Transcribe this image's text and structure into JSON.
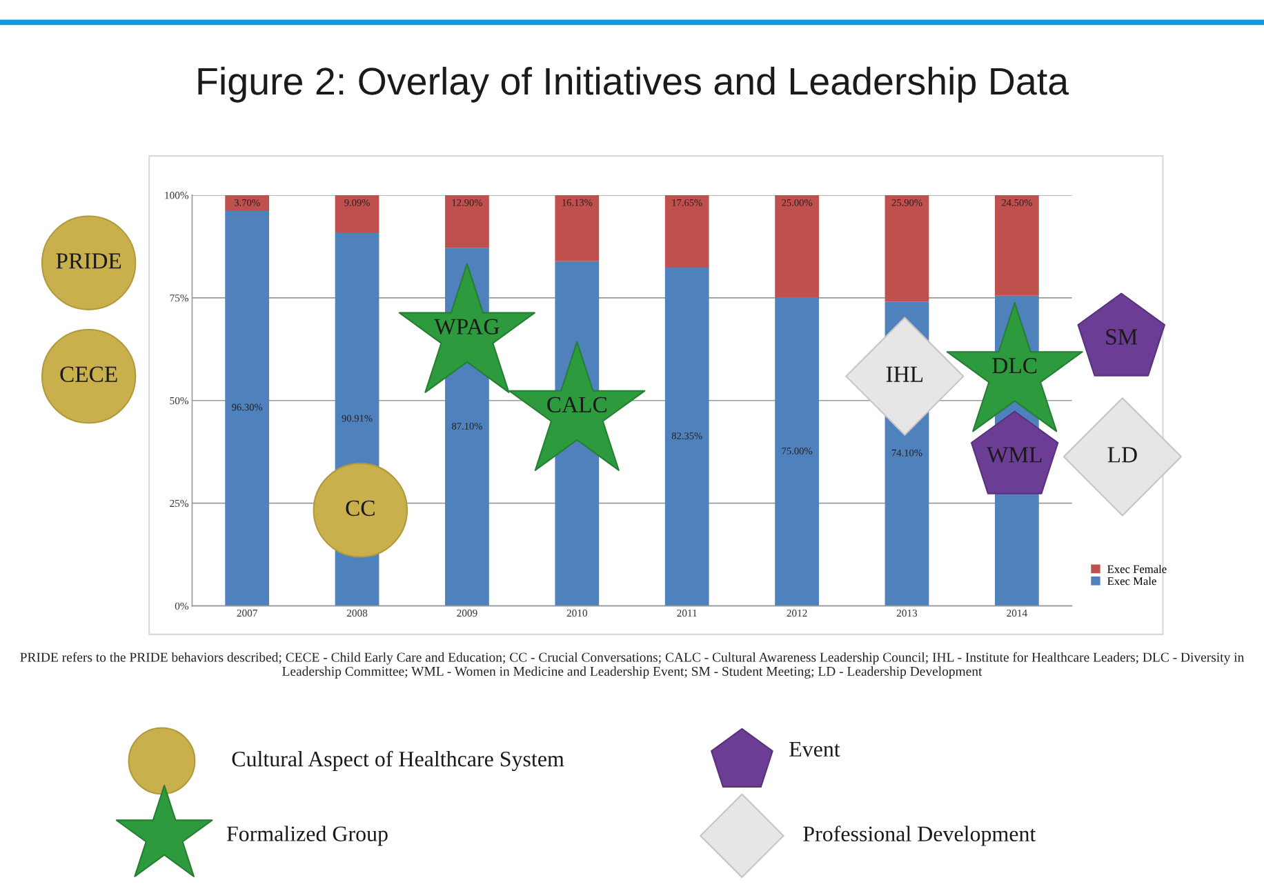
{
  "chart_data": {
    "type": "bar",
    "stacked": true,
    "title": "Figure 2: Overlay of Initiatives and Leadership Data",
    "categories": [
      "2007",
      "2008",
      "2009",
      "2010",
      "2011",
      "2012",
      "2013",
      "2014"
    ],
    "series": [
      {
        "name": "Exec Male",
        "color": "#4f81bd",
        "values": [
          96.3,
          90.91,
          87.1,
          83.9,
          82.35,
          75.0,
          74.1,
          75.5
        ],
        "value_labels": [
          "96.30%",
          "90.91%",
          "87.10%",
          null,
          "82.35%",
          "75.00%",
          "74.10%",
          null
        ]
      },
      {
        "name": "Exec Female",
        "color": "#c0504d",
        "values": [
          3.7,
          9.09,
          12.9,
          16.13,
          17.65,
          25.0,
          25.9,
          24.5
        ],
        "value_labels": [
          "3.70%",
          "9.09%",
          "12.90%",
          "16.13%",
          "17.65%",
          "25.00%",
          "25.90%",
          "24.50%"
        ]
      }
    ],
    "ylim": [
      0,
      100
    ],
    "yticks": [
      {
        "value": 0,
        "label": "0%"
      },
      {
        "value": 25,
        "label": "25%"
      },
      {
        "value": 50,
        "label": "50%"
      },
      {
        "value": 75,
        "label": "75%"
      },
      {
        "value": 100,
        "label": "100%"
      }
    ],
    "grid": "y",
    "legend": "bottom right",
    "annotations": [
      "PRIDE refers to the PRIDE behaviors described; CECE - Child Early Care and Education; CC - Crucial Conversations; CALC - Cultural Awareness Leadership Council; IHL - Institute for Healthcare Leaders; DLC - Diversity in Leadership Committee; WML - Women in Medicine and Leadership Event; SM - Student Meeting; LD - Leadership Development",
      "PRIDE",
      "CECE",
      "CC",
      "WPAG",
      "CALC",
      "IHL",
      "DLC",
      "SM",
      "WML",
      "LD",
      "Cultural Aspect of Healthcare System",
      "Formalized Group",
      "Event",
      "Professional Development"
    ]
  }
}
